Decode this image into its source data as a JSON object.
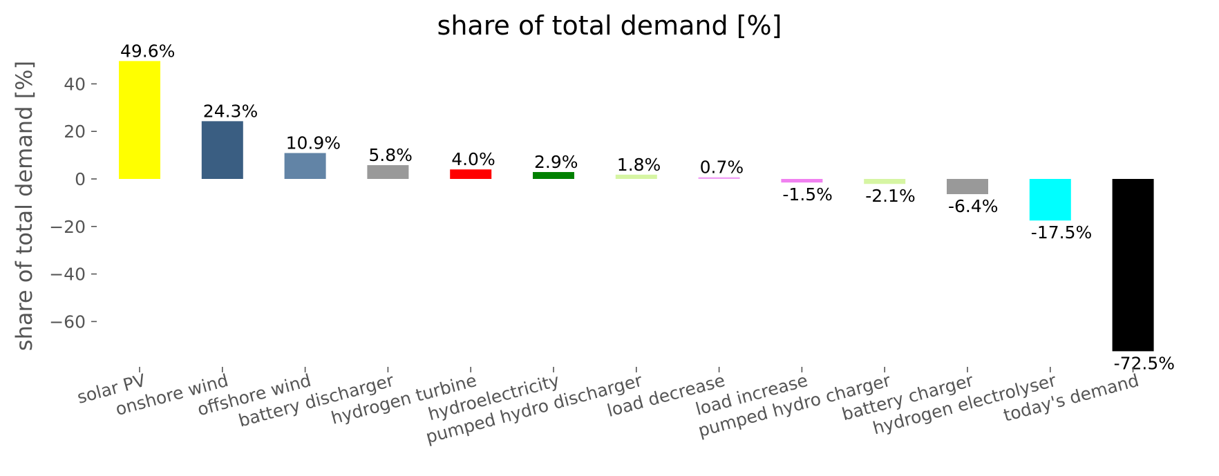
{
  "chart_data": {
    "type": "bar",
    "title": "share of total demand [%]",
    "xlabel": "",
    "ylabel": "share of total demand [%]",
    "ylim": [
      -80,
      50
    ],
    "yticks": [
      40,
      20,
      0,
      -20,
      -40,
      -60
    ],
    "ytick_labels": [
      "40",
      "20",
      "0",
      "−20",
      "−40",
      "−60"
    ],
    "grid": false,
    "categories": [
      "solar PV",
      "onshore wind",
      "offshore wind",
      "battery discharger",
      "hydrogen turbine",
      "hydroelectricity",
      "pumped hydro discharger",
      "load decrease",
      "load increase",
      "pumped hydro charger",
      "battery charger",
      "hydrogen electrolyser",
      "today's demand"
    ],
    "values": [
      49.6,
      24.3,
      10.9,
      5.8,
      4.0,
      2.9,
      1.8,
      0.7,
      -1.5,
      -2.1,
      -6.4,
      -17.5,
      -72.5
    ],
    "data_labels": [
      "49.6%",
      "24.3%",
      "10.9%",
      "5.8%",
      "4.0%",
      "2.9%",
      "1.8%",
      "0.7%",
      "-1.5%",
      "-2.1%",
      "-6.4%",
      "-17.5%",
      "-72.5%"
    ],
    "colors": [
      "#ffff00",
      "#3a5e82",
      "#6284a6",
      "#999999",
      "#ff0000",
      "#008000",
      "#d6f5a3",
      "#f0a0f5",
      "#f080f0",
      "#d6f5a3",
      "#999999",
      "#00ffff",
      "#000000"
    ]
  }
}
